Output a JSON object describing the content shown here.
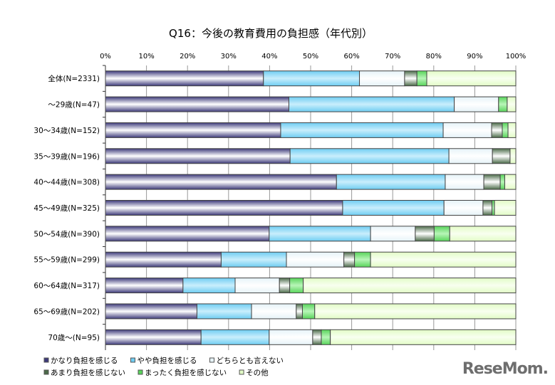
{
  "chart_data": {
    "type": "bar",
    "orientation": "horizontal",
    "stacked": "percent",
    "title": "Q16：今後の教育費用の負担感（年代別）",
    "xlim": [
      0,
      100
    ],
    "x_ticks": [
      "0%",
      "10%",
      "20%",
      "30%",
      "40%",
      "50%",
      "60%",
      "70%",
      "80%",
      "90%",
      "100%"
    ],
    "grid": true,
    "legend_position": "bottom",
    "categories": [
      "全体(N=2331)",
      "～29歳(N=47)",
      "30～34歳(N=152)",
      "35～39歳(N=196)",
      "40～44歳(N=308)",
      "45～49歳(N=325)",
      "50～54歳(N=390)",
      "55～59歳(N=299)",
      "60～64歳(N=317)",
      "65～69歳(N=202)",
      "70歳～(N=95)"
    ],
    "series": [
      {
        "name": "かなり負担を感じる",
        "color": "#3d3a7a",
        "values": [
          38.5,
          44.7,
          42.7,
          45.0,
          56.3,
          57.8,
          39.9,
          28.2,
          18.9,
          22.3,
          23.3
        ]
      },
      {
        "name": "やや負担を感じる",
        "color": "#6fcdf2",
        "values": [
          23.4,
          40.3,
          39.6,
          38.7,
          26.5,
          24.7,
          24.7,
          15.9,
          12.7,
          13.3,
          16.6
        ]
      },
      {
        "name": "どちらとも言えない",
        "color": "#e6f3f8",
        "values": [
          11.0,
          10.8,
          11.8,
          10.6,
          9.4,
          9.5,
          10.9,
          14.0,
          10.8,
          10.9,
          10.6
        ]
      },
      {
        "name": "あまり負担を感じない",
        "color": "#4a6a48",
        "values": [
          3.0,
          0,
          2.6,
          4.3,
          4.0,
          2.2,
          4.6,
          2.6,
          2.5,
          1.5,
          2.1
        ]
      },
      {
        "name": "まったく負担を感じない",
        "color": "#58d45a",
        "values": [
          2.4,
          2.1,
          1.4,
          0,
          1.1,
          0.6,
          3.8,
          3.9,
          3.3,
          3.0,
          2.2
        ]
      },
      {
        "name": "その他",
        "color": "#e2fcc6",
        "values": [
          21.7,
          2.1,
          1.9,
          1.4,
          2.7,
          5.2,
          16.1,
          35.4,
          51.8,
          49.0,
          45.2
        ]
      }
    ]
  },
  "watermark": "ReseMom"
}
